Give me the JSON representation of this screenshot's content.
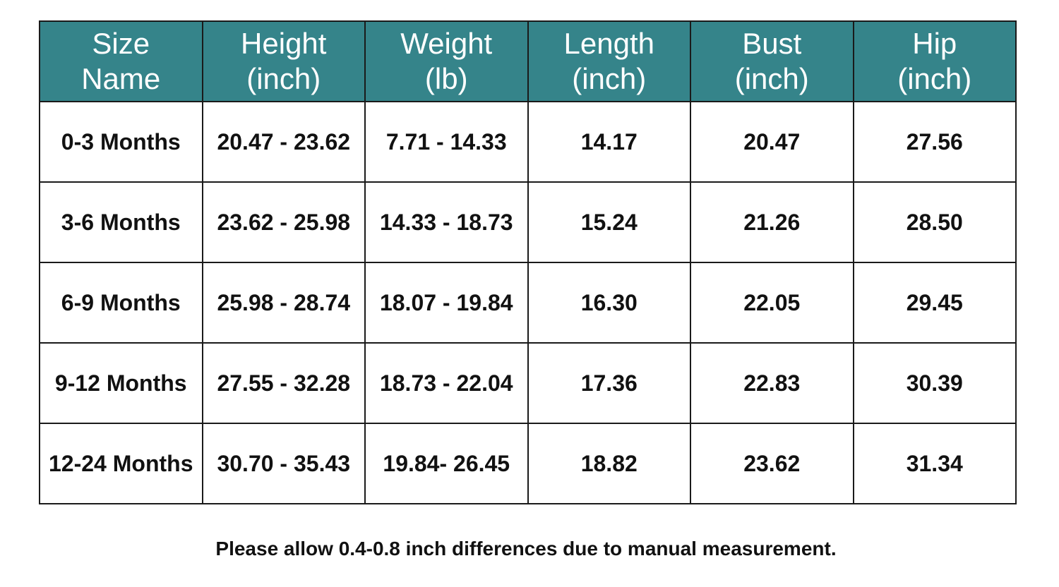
{
  "table": {
    "header": [
      [
        "Size",
        "Name"
      ],
      [
        "Height",
        "(inch)"
      ],
      [
        "Weight",
        "(lb)"
      ],
      [
        "Length",
        "(inch)"
      ],
      [
        "Bust",
        "(inch)"
      ],
      [
        "Hip",
        "(inch)"
      ]
    ],
    "rows": [
      [
        "0-3 Months",
        "20.47 - 23.62",
        "7.71 - 14.33",
        "14.17",
        "20.47",
        "27.56"
      ],
      [
        "3-6 Months",
        "23.62 - 25.98",
        "14.33 - 18.73",
        "15.24",
        "21.26",
        "28.50"
      ],
      [
        "6-9 Months",
        "25.98 - 28.74",
        "18.07 - 19.84",
        "16.30",
        "22.05",
        "29.45"
      ],
      [
        "9-12 Months",
        "27.55 - 32.28",
        "18.73 - 22.04",
        "17.36",
        "22.83",
        "30.39"
      ],
      [
        "12-24 Months",
        "30.70 - 35.43",
        "19.84- 26.45",
        "18.82",
        "23.62",
        "31.34"
      ]
    ]
  },
  "note": "Please allow 0.4-0.8 inch differences due to manual measurement."
}
